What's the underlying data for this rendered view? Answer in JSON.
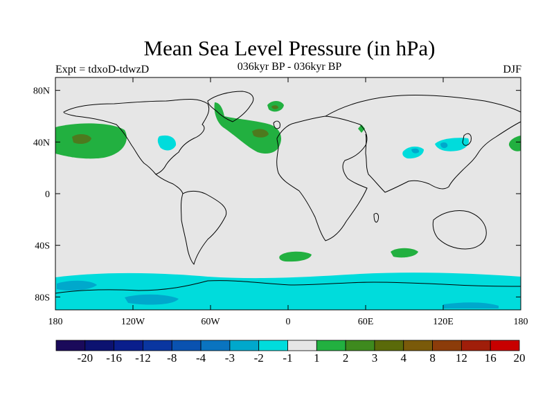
{
  "title": "Mean Sea Level Pressure (in hPa)",
  "experiment": "Expt = tdxoD-tdwzD",
  "subtitle": "036kyr BP - 036kyr BP",
  "season": "DJF",
  "colors": {
    "background": "#e6e6e6",
    "neg1": "#00dcdc",
    "neg2": "#00a8cc",
    "pos1": "#22b040",
    "pos2": "#4d7a1e"
  },
  "map": {
    "lon_range": [
      -180,
      180
    ],
    "lat_range": [
      -90,
      90
    ],
    "lon_ticks": [
      "180",
      "120W",
      "60W",
      "0",
      "60E",
      "120E",
      "180"
    ],
    "lat_ticks": [
      "80N",
      "40N",
      "0",
      "40S",
      "80S"
    ]
  },
  "colorbar": {
    "labels": [
      "-20",
      "-16",
      "-12",
      "-8",
      "-4",
      "-3",
      "-2",
      "-1",
      "1",
      "2",
      "3",
      "4",
      "8",
      "12",
      "16",
      "20"
    ],
    "colors": [
      "#1a0a5a",
      "#0c1270",
      "#0a1e8c",
      "#0a36a0",
      "#0a52b0",
      "#0a74c0",
      "#00a8cc",
      "#00dcdc",
      "#e6e6e6",
      "#22b040",
      "#3e8a1e",
      "#5a6a0a",
      "#7a5a0a",
      "#8c3c0a",
      "#a01e0a",
      "#c80000"
    ]
  }
}
